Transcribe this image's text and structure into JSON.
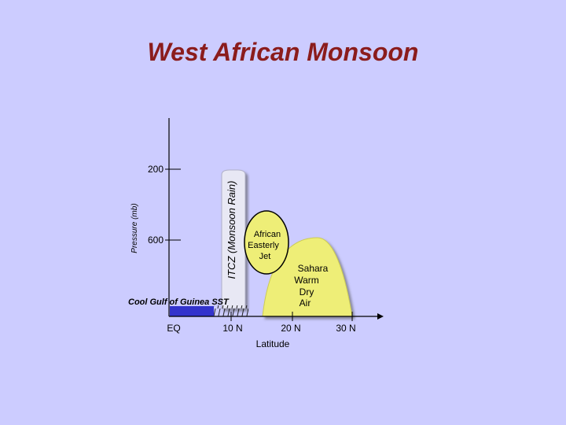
{
  "title": "West African Monsoon",
  "y_axis": {
    "label": "Pressure (mb)",
    "ticks": [
      "200",
      "600"
    ]
  },
  "x_axis": {
    "label": "Latitude",
    "ticks": [
      "EQ",
      "10 N",
      "20 N",
      "30 N"
    ]
  },
  "features": {
    "itcz_label": "ITCZ (Monsoon Rain)",
    "jet_lines": [
      "African",
      "Easterly",
      "Jet"
    ],
    "sahara_lines": [
      "Sahara",
      "Warm",
      "Dry",
      "Air"
    ],
    "gulf_label": "Cool Gulf of Guinea SST"
  },
  "colors": {
    "background": "#ccccff",
    "title": "#8b1c1c",
    "ocean": "#3333cc",
    "sahara": "#eeee77",
    "itcz": "#e8e8f4"
  }
}
